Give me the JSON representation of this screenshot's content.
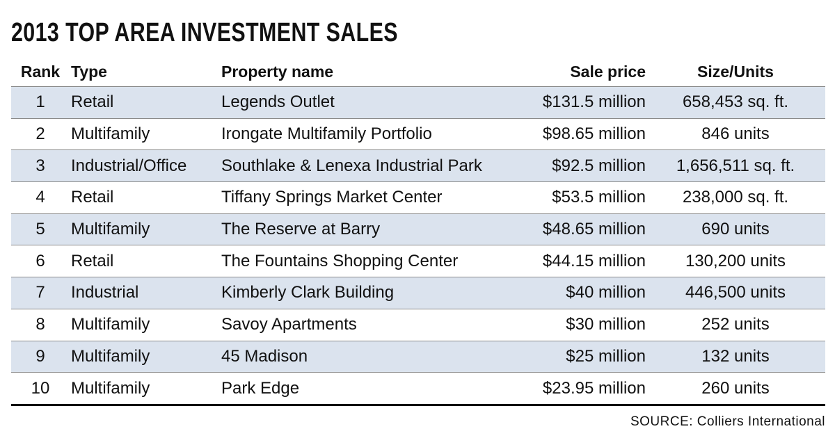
{
  "header": {
    "title": "2013 TOP AREA INVESTMENT SALES"
  },
  "table": {
    "columns": [
      "Rank",
      "Type",
      "Property name",
      "Sale price",
      "Size/Units"
    ],
    "rows": [
      [
        1,
        "Retail",
        "Legends Outlet",
        "$131.5 million",
        "658,453 sq. ft."
      ],
      [
        2,
        "Multifamily",
        "Irongate Multifamily Portfolio",
        "$98.65 million",
        "846 units"
      ],
      [
        3,
        "Industrial/Office",
        "Southlake & Lenexa Industrial Park",
        "$92.5 million",
        "1,656,511 sq. ft."
      ],
      [
        4,
        "Retail",
        "Tiffany Springs Market Center",
        "$53.5 million",
        "238,000 sq. ft."
      ],
      [
        5,
        "Multifamily",
        "The Reserve at Barry",
        "$48.65 million",
        "690 units"
      ],
      [
        6,
        "Retail",
        "The Fountains Shopping Center",
        "$44.15 million",
        "130,200 units"
      ],
      [
        7,
        "Industrial",
        "Kimberly Clark Building",
        "$40 million",
        "446,500 units"
      ],
      [
        8,
        "Multifamily",
        "Savoy Apartments",
        "$30 million",
        "252 units"
      ],
      [
        9,
        "Multifamily",
        "45 Madison",
        "$25 million",
        "132 units"
      ],
      [
        10,
        "Multifamily",
        "Park Edge",
        "$23.95 million",
        "260 units"
      ]
    ]
  },
  "footer": {
    "source": "SOURCE: Colliers International"
  }
}
